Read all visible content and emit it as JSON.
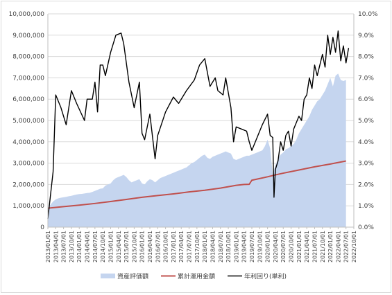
{
  "chart_data": {
    "type": "area+line",
    "title": "",
    "xlabel": "",
    "ylabel_left": "",
    "ylabel_right": "",
    "x_start": "2013/01/01",
    "x_end": "2022/10/01",
    "left_axis": {
      "min": 0,
      "max": 10000000,
      "step": 1000000,
      "tick_labels": [
        "0",
        "1,000,000",
        "2,000,000",
        "3,000,000",
        "4,000,000",
        "5,000,000",
        "6,000,000",
        "7,000,000",
        "8,000,000",
        "9,000,000",
        "10,000,000"
      ]
    },
    "right_axis": {
      "min": 0,
      "max": 10,
      "step": 1,
      "tick_labels": [
        "0.0%",
        "1.0%",
        "2.0%",
        "3.0%",
        "4.0%",
        "5.0%",
        "6.0%",
        "7.0%",
        "8.0%",
        "9.0%",
        "10.0%"
      ]
    },
    "x_tick_labels": [
      "2013/01/01",
      "2013/04/01",
      "2013/07/01",
      "2013/10/01",
      "2014/01/01",
      "2014/04/01",
      "2014/07/01",
      "2014/10/01",
      "2015/01/01",
      "2015/04/01",
      "2015/07/01",
      "2015/10/01",
      "2016/01/01",
      "2016/04/01",
      "2016/07/01",
      "2016/10/01",
      "2017/01/01",
      "2017/04/01",
      "2017/07/01",
      "2017/10/01",
      "2018/01/01",
      "2018/04/01",
      "2018/07/01",
      "2018/10/01",
      "2019/01/01",
      "2019/04/01",
      "2019/07/01",
      "2019/10/01",
      "2020/01/01",
      "2020/04/01",
      "2020/07/01",
      "2020/10/01",
      "2021/01/01",
      "2021/04/01",
      "2021/07/01",
      "2021/10/01",
      "2022/01/01",
      "2022/04/01",
      "2022/07/01",
      "2022/10/01"
    ],
    "grid": "horizontal",
    "legend_position": "bottom",
    "series": [
      {
        "name": "資産評価額",
        "kind": "area",
        "axis": "left",
        "color": "#c5d5ef",
        "x": [
          "2013/01/01",
          "2013/02/01",
          "2013/03/01",
          "2013/04/01",
          "2013/05/01",
          "2013/06/01",
          "2013/07/01",
          "2013/08/01",
          "2013/09/01",
          "2013/10/01",
          "2013/11/01",
          "2013/12/01",
          "2014/01/01",
          "2014/02/01",
          "2014/03/01",
          "2014/04/01",
          "2014/05/01",
          "2014/06/01",
          "2014/07/01",
          "2014/08/01",
          "2014/09/01",
          "2014/10/01",
          "2014/11/01",
          "2014/12/01",
          "2015/01/01",
          "2015/02/01",
          "2015/03/01",
          "2015/04/01",
          "2015/05/01",
          "2015/06/01",
          "2015/07/01",
          "2015/08/01",
          "2015/09/01",
          "2015/10/01",
          "2015/11/01",
          "2015/12/01",
          "2016/01/01",
          "2016/02/01",
          "2016/03/01",
          "2016/04/01",
          "2016/05/01",
          "2016/06/01",
          "2016/07/01",
          "2016/08/01",
          "2016/09/01",
          "2016/10/01",
          "2016/11/01",
          "2016/12/01",
          "2017/01/01",
          "2017/02/01",
          "2017/03/01",
          "2017/04/01",
          "2017/05/01",
          "2017/06/01",
          "2017/07/01",
          "2017/08/01",
          "2017/09/01",
          "2017/10/01",
          "2017/11/01",
          "2017/12/01",
          "2018/01/01",
          "2018/02/01",
          "2018/03/01",
          "2018/04/01",
          "2018/05/01",
          "2018/06/01",
          "2018/07/01",
          "2018/08/01",
          "2018/09/01",
          "2018/10/01",
          "2018/11/01",
          "2018/12/01",
          "2019/01/01",
          "2019/02/01",
          "2019/03/01",
          "2019/04/01",
          "2019/05/01",
          "2019/06/01",
          "2019/07/01",
          "2019/08/01",
          "2019/09/01",
          "2019/10/01",
          "2019/11/01",
          "2019/12/01",
          "2020/01/01",
          "2020/02/01",
          "2020/03/01",
          "2020/04/01",
          "2020/05/01",
          "2020/06/01",
          "2020/07/01",
          "2020/08/01",
          "2020/09/01",
          "2020/10/01",
          "2020/11/01",
          "2020/12/01",
          "2021/01/01",
          "2021/02/01",
          "2021/03/01",
          "2021/04/01",
          "2021/05/01",
          "2021/06/01",
          "2021/07/01",
          "2021/08/01",
          "2021/09/01",
          "2021/10/01",
          "2021/11/01",
          "2021/12/01",
          "2022/01/01",
          "2022/02/01",
          "2022/03/01",
          "2022/04/01",
          "2022/05/01",
          "2022/06/01",
          "2022/07/01"
        ],
        "values": [
          900000,
          1050000,
          1200000,
          1300000,
          1350000,
          1380000,
          1400000,
          1420000,
          1450000,
          1470000,
          1500000,
          1530000,
          1550000,
          1560000,
          1580000,
          1600000,
          1610000,
          1650000,
          1700000,
          1750000,
          1800000,
          1820000,
          1950000,
          2000000,
          2050000,
          2200000,
          2300000,
          2350000,
          2400000,
          2450000,
          2350000,
          2200000,
          2100000,
          2150000,
          2200000,
          2250000,
          2050000,
          2000000,
          2150000,
          2250000,
          2200000,
          2100000,
          2200000,
          2300000,
          2350000,
          2400000,
          2450000,
          2500000,
          2550000,
          2600000,
          2650000,
          2700000,
          2750000,
          2800000,
          2900000,
          3000000,
          3050000,
          3150000,
          3250000,
          3350000,
          3400000,
          3250000,
          3200000,
          3300000,
          3350000,
          3400000,
          3450000,
          3500000,
          3550000,
          3500000,
          3450000,
          3200000,
          3150000,
          3200000,
          3250000,
          3300000,
          3350000,
          3350000,
          3400000,
          3450000,
          3500000,
          3550000,
          3600000,
          3800000,
          4100000,
          3700000,
          2450000,
          2900000,
          3200000,
          3400000,
          3500000,
          3650000,
          3700000,
          3800000,
          3900000,
          4100000,
          4400000,
          4600000,
          4800000,
          5000000,
          5200000,
          5500000,
          5700000,
          5900000,
          6000000,
          6200000,
          6400000,
          6700000,
          7000000,
          6600000,
          7100000,
          7200000,
          6900000,
          6850000,
          6900000
        ]
      },
      {
        "name": "累計運用金額",
        "kind": "line",
        "axis": "left",
        "color": "#c0504d",
        "points": [
          [
            "2013/01/01",
            890000
          ],
          [
            "2013/07/01",
            960000
          ],
          [
            "2014/01/01",
            1030000
          ],
          [
            "2014/07/01",
            1110000
          ],
          [
            "2015/01/01",
            1200000
          ],
          [
            "2015/07/01",
            1300000
          ],
          [
            "2016/01/01",
            1400000
          ],
          [
            "2016/07/01",
            1480000
          ],
          [
            "2017/01/01",
            1560000
          ],
          [
            "2017/07/01",
            1650000
          ],
          [
            "2018/01/01",
            1730000
          ],
          [
            "2018/07/01",
            1830000
          ],
          [
            "2019/01/01",
            1960000
          ],
          [
            "2019/04/01",
            2000000
          ],
          [
            "2019/06/01",
            2010000
          ],
          [
            "2019/07/01",
            2200000
          ],
          [
            "2020/01/01",
            2360000
          ],
          [
            "2020/04/01",
            2450000
          ],
          [
            "2020/07/01",
            2530000
          ],
          [
            "2021/01/01",
            2680000
          ],
          [
            "2021/07/01",
            2830000
          ],
          [
            "2022/01/01",
            2960000
          ],
          [
            "2022/07/01",
            3100000
          ]
        ]
      },
      {
        "name": "年利回り(単利)",
        "kind": "line",
        "axis": "right",
        "color": "#000000",
        "points": [
          [
            "2013/01/01",
            0.4
          ],
          [
            "2013/03/01",
            2.6
          ],
          [
            "2013/04/01",
            6.2
          ],
          [
            "2013/06/01",
            5.6
          ],
          [
            "2013/08/01",
            4.8
          ],
          [
            "2013/10/01",
            6.4
          ],
          [
            "2013/12/01",
            5.8
          ],
          [
            "2014/03/01",
            5.0
          ],
          [
            "2014/04/01",
            6.0
          ],
          [
            "2014/06/01",
            6.0
          ],
          [
            "2014/07/01",
            6.8
          ],
          [
            "2014/08/01",
            5.4
          ],
          [
            "2014/09/01",
            7.6
          ],
          [
            "2014/10/01",
            7.6
          ],
          [
            "2014/11/01",
            7.1
          ],
          [
            "2015/01/01",
            8.2
          ],
          [
            "2015/03/01",
            9.0
          ],
          [
            "2015/05/01",
            9.1
          ],
          [
            "2015/06/01",
            8.6
          ],
          [
            "2015/08/01",
            6.8
          ],
          [
            "2015/10/01",
            5.6
          ],
          [
            "2015/12/01",
            6.8
          ],
          [
            "2016/01/01",
            4.4
          ],
          [
            "2016/02/01",
            4.1
          ],
          [
            "2016/04/01",
            5.3
          ],
          [
            "2016/06/01",
            3.2
          ],
          [
            "2016/07/01",
            4.3
          ],
          [
            "2016/10/01",
            5.4
          ],
          [
            "2017/01/01",
            6.1
          ],
          [
            "2017/03/01",
            5.8
          ],
          [
            "2017/06/01",
            6.4
          ],
          [
            "2017/09/01",
            6.9
          ],
          [
            "2017/11/01",
            7.6
          ],
          [
            "2018/01/01",
            7.9
          ],
          [
            "2018/03/01",
            6.6
          ],
          [
            "2018/05/01",
            7.0
          ],
          [
            "2018/06/01",
            6.4
          ],
          [
            "2018/08/01",
            6.2
          ],
          [
            "2018/09/01",
            7.0
          ],
          [
            "2018/11/01",
            5.6
          ],
          [
            "2018/12/01",
            4.0
          ],
          [
            "2019/01/01",
            4.7
          ],
          [
            "2019/03/01",
            4.6
          ],
          [
            "2019/05/01",
            4.5
          ],
          [
            "2019/06/01",
            4.0
          ],
          [
            "2019/07/01",
            3.6
          ],
          [
            "2019/09/01",
            4.2
          ],
          [
            "2019/11/01",
            4.8
          ],
          [
            "2020/01/01",
            5.3
          ],
          [
            "2020/02/01",
            4.3
          ],
          [
            "2020/03/01",
            4.2
          ],
          [
            "2020/03/15",
            1.4
          ],
          [
            "2020/04/01",
            2.7
          ],
          [
            "2020/05/01",
            3.1
          ],
          [
            "2020/06/01",
            4.0
          ],
          [
            "2020/07/01",
            3.6
          ],
          [
            "2020/08/01",
            4.3
          ],
          [
            "2020/09/01",
            4.5
          ],
          [
            "2020/10/01",
            3.8
          ],
          [
            "2020/11/01",
            4.6
          ],
          [
            "2020/12/01",
            4.9
          ],
          [
            "2021/01/01",
            5.2
          ],
          [
            "2021/02/01",
            5.0
          ],
          [
            "2021/03/01",
            6.0
          ],
          [
            "2021/04/01",
            6.2
          ],
          [
            "2021/05/01",
            7.0
          ],
          [
            "2021/06/01",
            6.5
          ],
          [
            "2021/07/01",
            7.6
          ],
          [
            "2021/08/01",
            7.1
          ],
          [
            "2021/09/01",
            7.6
          ],
          [
            "2021/10/01",
            8.1
          ],
          [
            "2021/11/01",
            7.5
          ],
          [
            "2021/12/01",
            9.0
          ],
          [
            "2022/01/01",
            8.1
          ],
          [
            "2022/02/01",
            8.9
          ],
          [
            "2022/03/01",
            8.2
          ],
          [
            "2022/04/01",
            9.2
          ],
          [
            "2022/05/01",
            7.8
          ],
          [
            "2022/06/01",
            8.5
          ],
          [
            "2022/07/01",
            7.7
          ],
          [
            "2022/08/01",
            8.4
          ]
        ]
      }
    ]
  }
}
